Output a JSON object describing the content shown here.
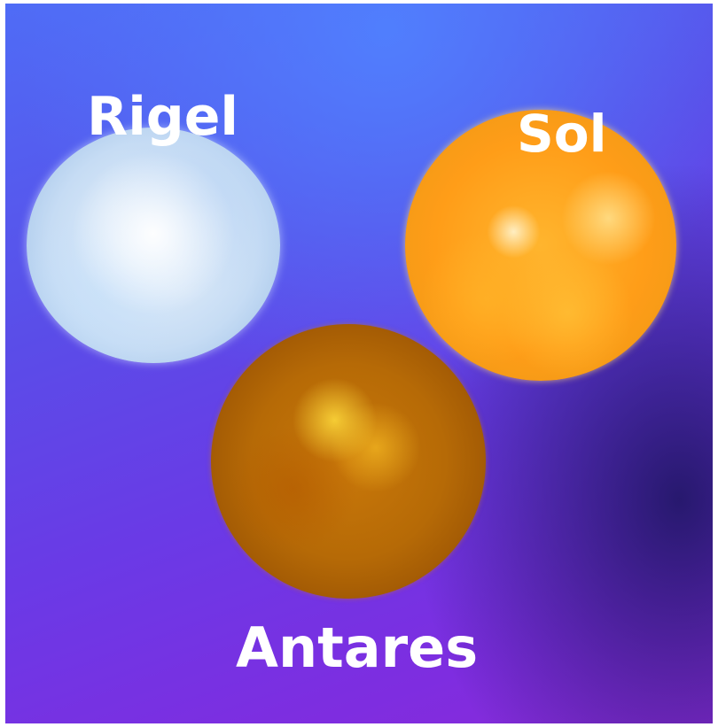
{
  "stars": [
    {
      "label": "Rigel",
      "color": "#c6dcf4"
    },
    {
      "label": "Sol",
      "color": "#ff9d18"
    },
    {
      "label": "Antares",
      "color": "#b66a06"
    }
  ],
  "background": {
    "colors": [
      "#4f6cf6",
      "#6a3ae6",
      "#8a2bd8"
    ]
  }
}
